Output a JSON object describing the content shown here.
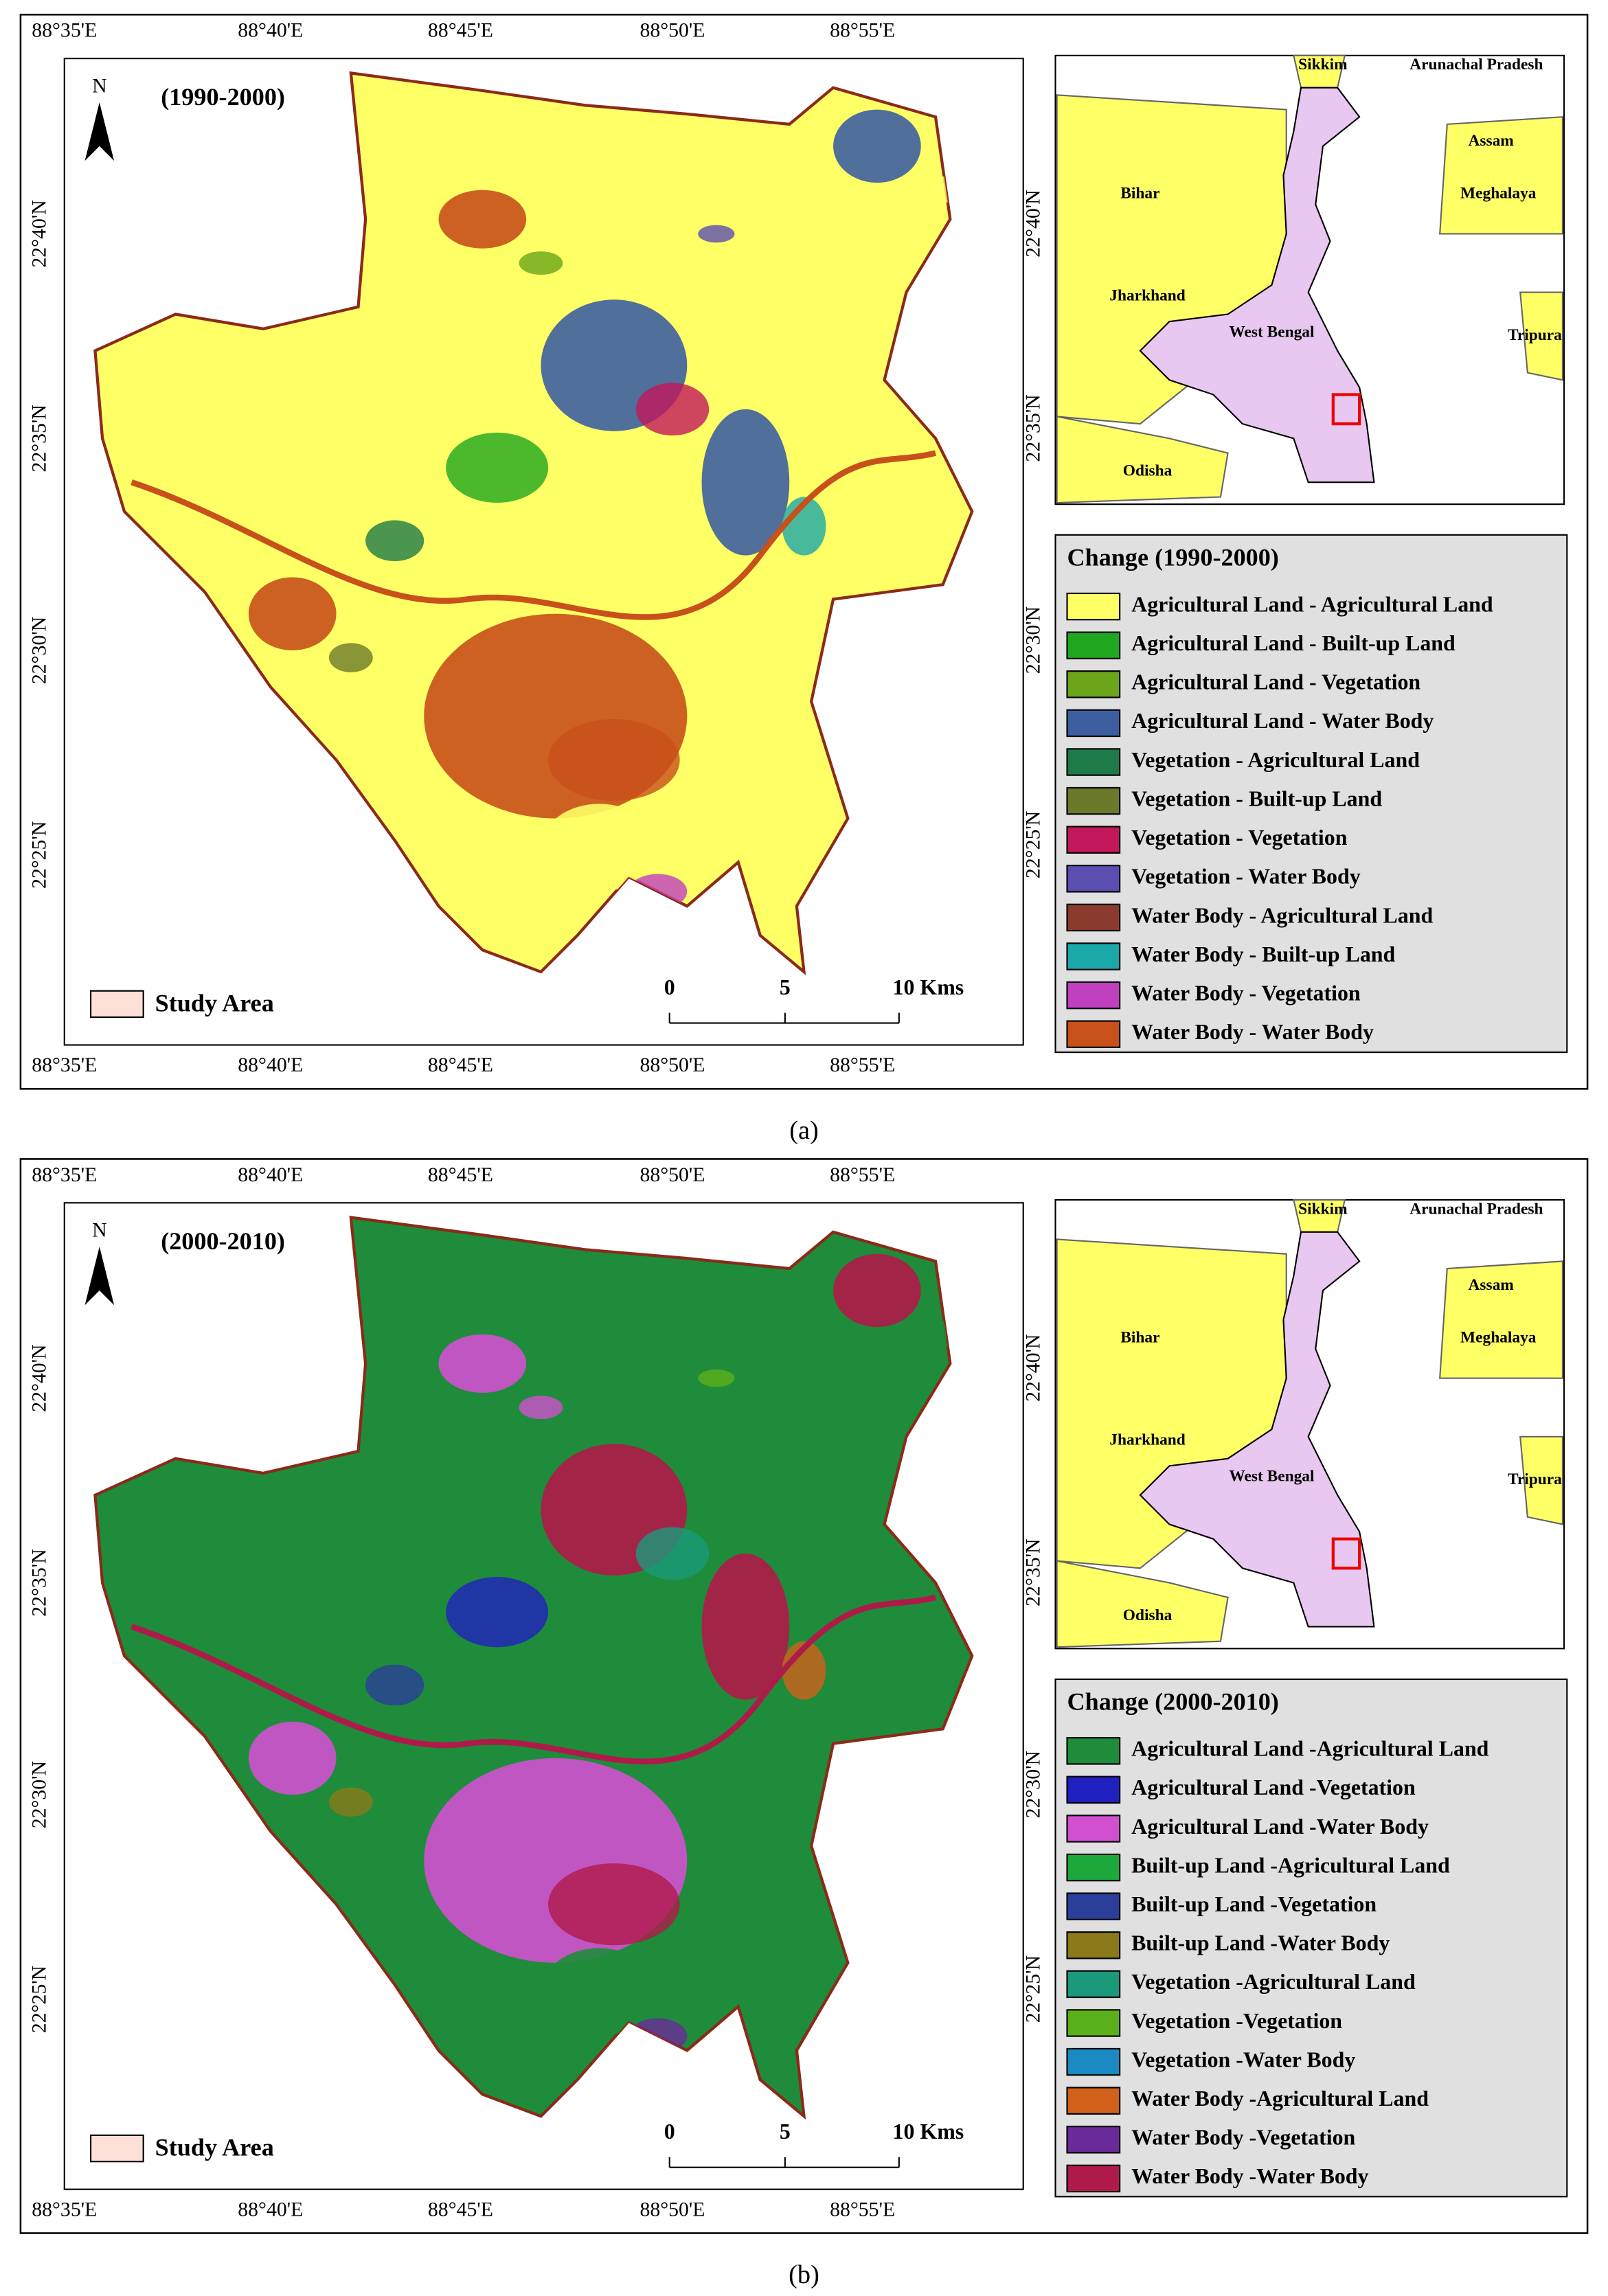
{
  "panels": [
    {
      "period": "(1990-2000)",
      "caption": "(a)",
      "north": "N",
      "study_area": "Study Area",
      "lon_labels": [
        "88°35'E",
        "88°40'E",
        "88°45'E",
        "88°50'E",
        "88°55'E"
      ],
      "lat_labels": [
        "22°40'N",
        "22°35'N",
        "22°30'N",
        "22°25'N"
      ],
      "scale_labels": [
        "0",
        "5",
        "10 Kms"
      ],
      "inset_labels": [
        "Sikkim",
        "Arunachal Pradesh",
        "Assam",
        "Meghalaya",
        "Bihar",
        "Jharkhand",
        "West Bengal",
        "Tripura",
        "Odisha"
      ],
      "legend": {
        "title": "Change (1990-2000)",
        "items": [
          {
            "label": "Agricultural Land - Agricultural Land",
            "color": "#ffff66"
          },
          {
            "label": "Agricultural Land - Built-up Land",
            "color": "#1fa81f"
          },
          {
            "label": "Agricultural Land - Vegetation",
            "color": "#6aa51a"
          },
          {
            "label": "Agricultural Land - Water Body",
            "color": "#3d5fa0"
          },
          {
            "label": "Vegetation - Agricultural Land",
            "color": "#1f7a4a"
          },
          {
            "label": "Vegetation - Built-up Land",
            "color": "#6b7a2a"
          },
          {
            "label": "Vegetation - Vegetation",
            "color": "#c2185b"
          },
          {
            "label": "Vegetation - Water Body",
            "color": "#5a4fb0"
          },
          {
            "label": "Water Body - Agricultural Land",
            "color": "#8b3a2e"
          },
          {
            "label": "Water Body - Built-up Land",
            "color": "#1aa8a8"
          },
          {
            "label": "Water Body - Vegetation",
            "color": "#c040c0"
          },
          {
            "label": "Water Body - Water Body",
            "color": "#c8501a"
          }
        ]
      }
    },
    {
      "period": "(2000-2010)",
      "caption": "(b)",
      "north": "N",
      "study_area": "Study Area",
      "lon_labels": [
        "88°35'E",
        "88°40'E",
        "88°45'E",
        "88°50'E",
        "88°55'E"
      ],
      "lat_labels": [
        "22°40'N",
        "22°35'N",
        "22°30'N",
        "22°25'N"
      ],
      "scale_labels": [
        "0",
        "5",
        "10 Kms"
      ],
      "inset_labels": [
        "Sikkim",
        "Arunachal Pradesh",
        "Assam",
        "Meghalaya",
        "Bihar",
        "Jharkhand",
        "West Bengal",
        "Tripura",
        "Odisha"
      ],
      "legend": {
        "title": "Change (2000-2010)",
        "items": [
          {
            "label": "Agricultural Land -Agricultural Land",
            "color": "#1e8c3a"
          },
          {
            "label": "Agricultural Land -Vegetation",
            "color": "#2020c0"
          },
          {
            "label": "Agricultural Land -Water Body",
            "color": "#d050d0"
          },
          {
            "label": "Built-up Land -Agricultural Land",
            "color": "#1ca83a"
          },
          {
            "label": "Built-up Land -Vegetation",
            "color": "#2a3e9a"
          },
          {
            "label": "Built-up Land -Water Body",
            "color": "#8a7a1a"
          },
          {
            "label": "Vegetation -Agricultural Land",
            "color": "#1a9a7a"
          },
          {
            "label": "Vegetation -Vegetation",
            "color": "#5ab01a"
          },
          {
            "label": "Vegetation -Water Body",
            "color": "#1a8ac0"
          },
          {
            "label": "Water Body -Agricultural Land",
            "color": "#d0601a"
          },
          {
            "label": "Water Body -Vegetation",
            "color": "#6a2a9a"
          },
          {
            "label": "Water Body -Water Body",
            "color": "#b01a4a"
          }
        ]
      }
    }
  ]
}
